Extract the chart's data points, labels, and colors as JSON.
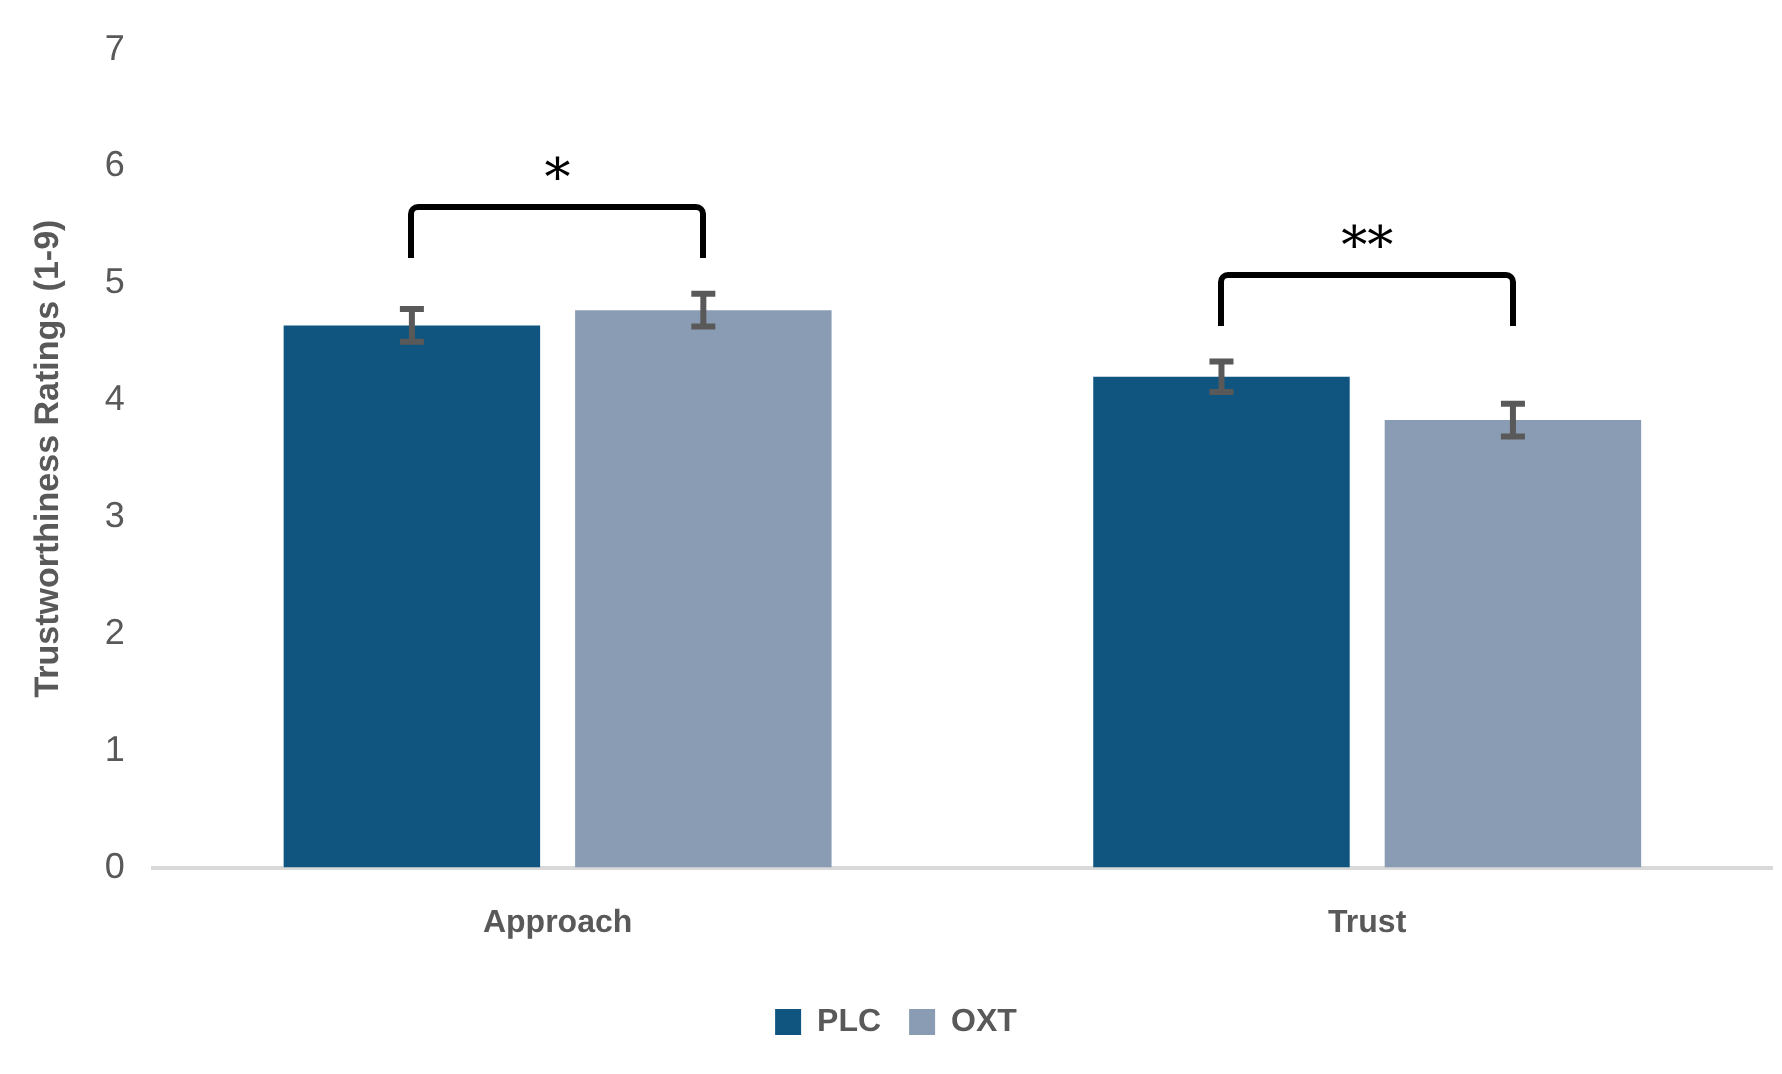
{
  "chart_data": {
    "type": "bar",
    "ylabel": "Trustworthiness Ratings (1-9)",
    "categories": [
      "Approach",
      "Trust"
    ],
    "series": [
      {
        "name": "PLC",
        "color": "#0f5580",
        "values": [
          4.64,
          4.2
        ],
        "errors": [
          0.14,
          0.13
        ]
      },
      {
        "name": "OXT",
        "color": "#8a9cb3",
        "values": [
          4.77,
          3.83
        ],
        "errors": [
          0.14,
          0.14
        ]
      }
    ],
    "annotations": [
      "*",
      "**"
    ],
    "ylim": [
      0,
      7
    ],
    "yticks": [
      0,
      1,
      2,
      3,
      4,
      5,
      6,
      7
    ],
    "grid": false,
    "legend": "bottom"
  }
}
